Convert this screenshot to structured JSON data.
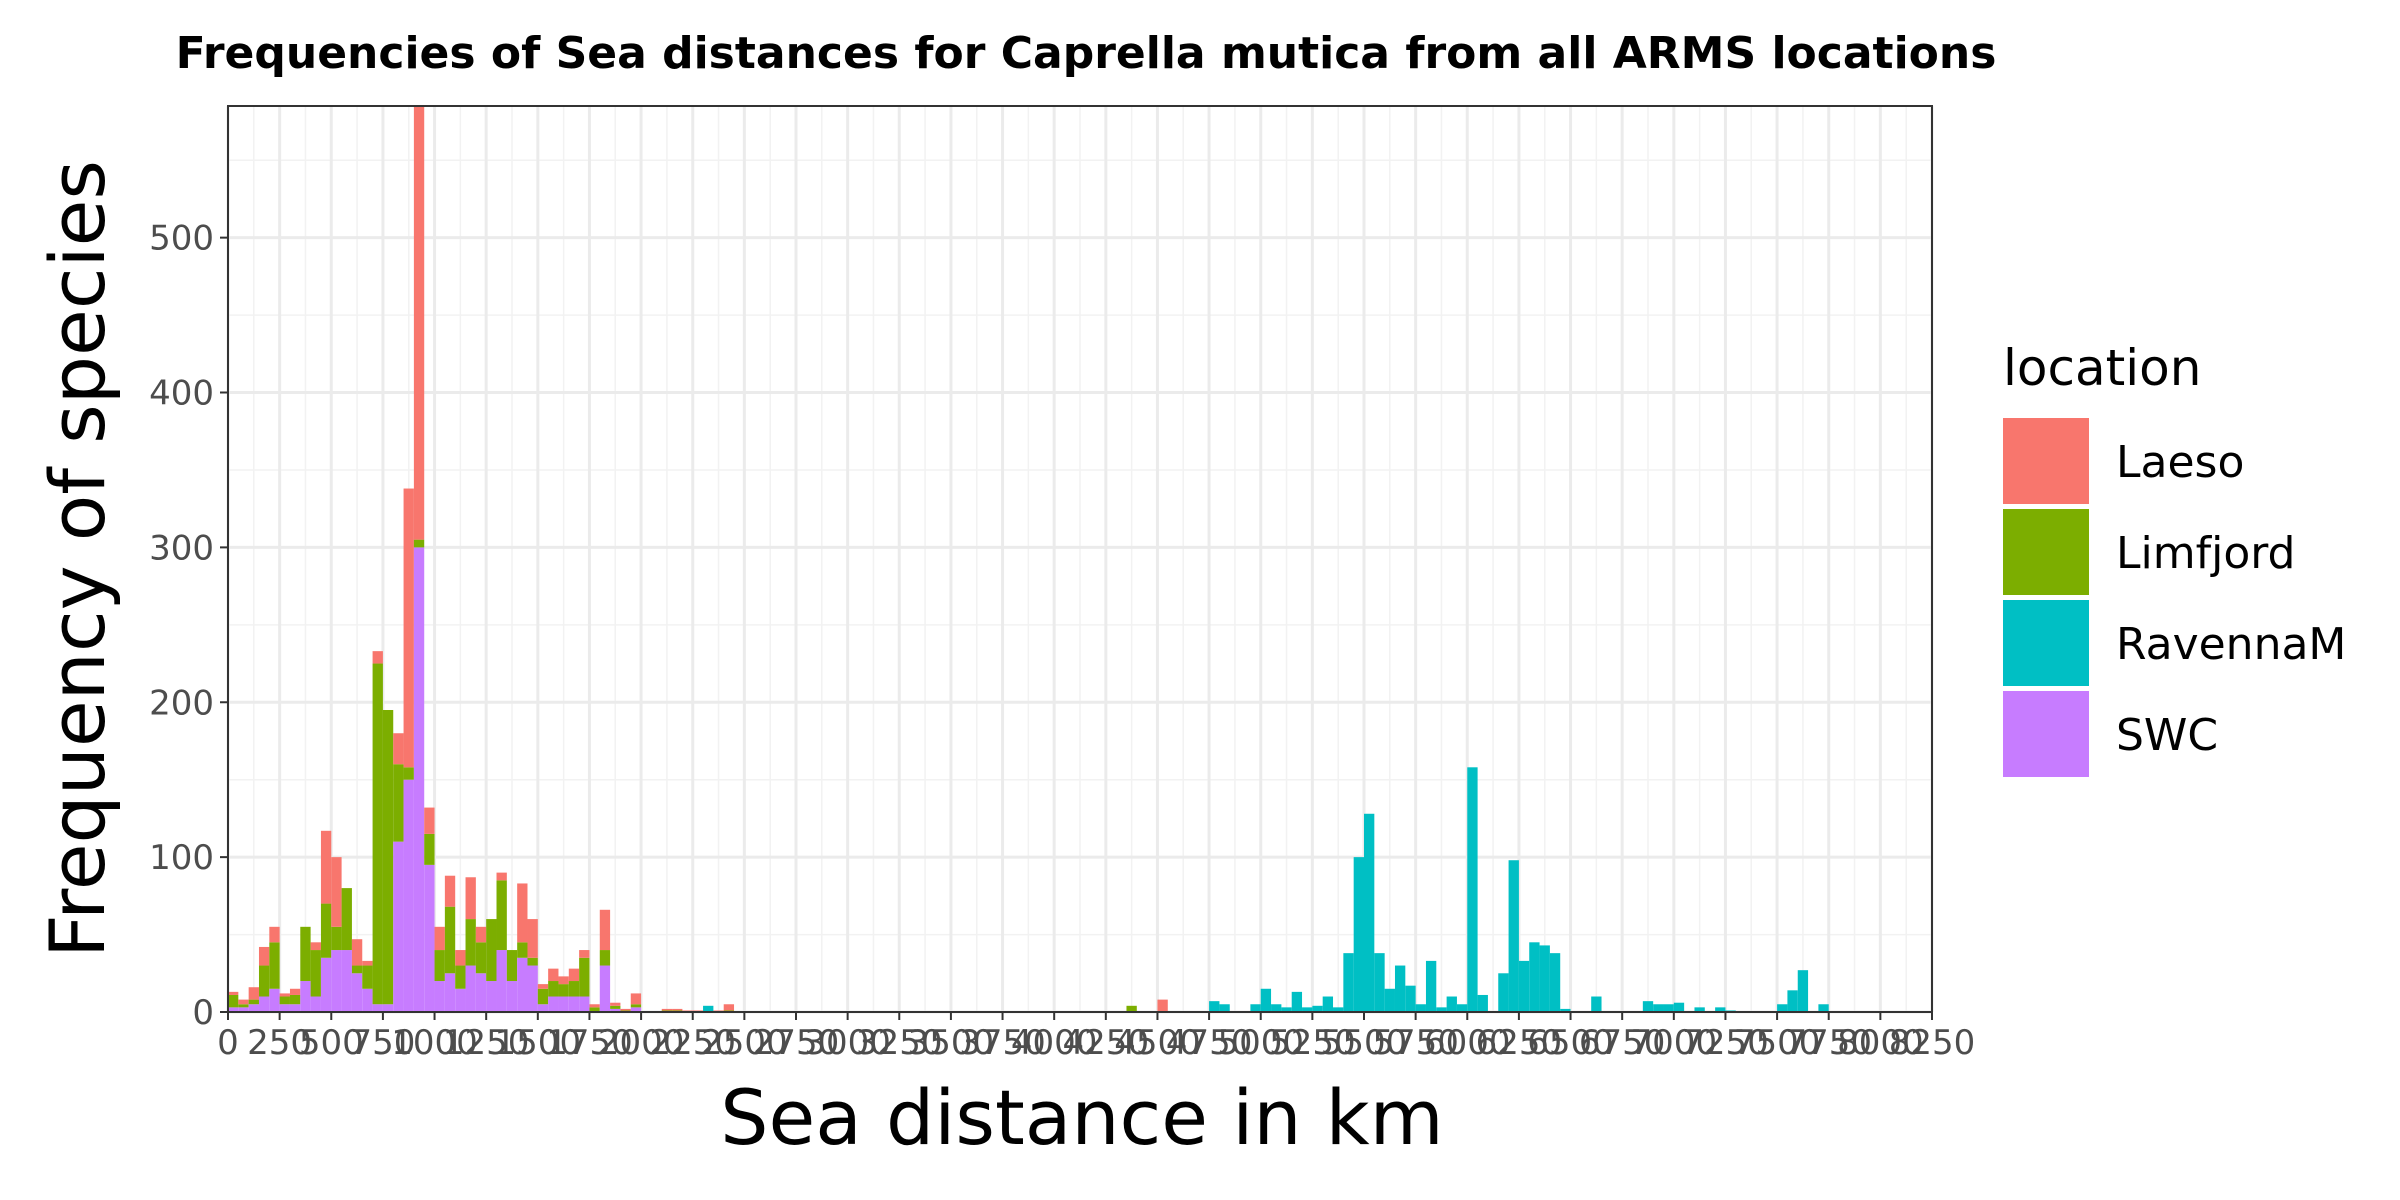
{
  "chart_data": {
    "type": "bar",
    "stacked": true,
    "title": "Frequencies of Sea distances for Caprella mutica from all ARMS locations",
    "xlabel": "Sea distance in km",
    "ylabel": "Frequency of species",
    "xlim": [
      0,
      8250
    ],
    "ylim": [
      0,
      585
    ],
    "bin_width": 50,
    "x_ticks": [
      0,
      250,
      500,
      750,
      1000,
      1250,
      1500,
      1750,
      2000,
      2250,
      2500,
      2750,
      3000,
      3250,
      3500,
      3750,
      4000,
      4250,
      4500,
      4750,
      5000,
      5250,
      5500,
      5750,
      6000,
      6250,
      6500,
      6750,
      7000,
      7250,
      7500,
      7750,
      8000,
      8250
    ],
    "y_ticks": [
      0,
      100,
      200,
      300,
      400,
      500
    ],
    "grid": true,
    "legend": {
      "title": "location",
      "position": "right",
      "entries": [
        {
          "name": "Laeso",
          "color": "#F8766D"
        },
        {
          "name": "Limfjord",
          "color": "#7CAE00"
        },
        {
          "name": "RavennaM",
          "color": "#00BFC4"
        },
        {
          "name": "SWC",
          "color": "#C77CFF"
        }
      ]
    },
    "bins": [
      {
        "x": 0,
        "SWC": 3,
        "Limfjord": 8,
        "Laeso": 2
      },
      {
        "x": 50,
        "SWC": 3,
        "Limfjord": 2,
        "Laeso": 3
      },
      {
        "x": 100,
        "SWC": 5,
        "Limfjord": 3,
        "Laeso": 8
      },
      {
        "x": 150,
        "SWC": 10,
        "Limfjord": 20,
        "Laeso": 12
      },
      {
        "x": 200,
        "SWC": 15,
        "Limfjord": 30,
        "Laeso": 10
      },
      {
        "x": 250,
        "SWC": 5,
        "Limfjord": 5,
        "Laeso": 2
      },
      {
        "x": 300,
        "SWC": 5,
        "Limfjord": 6,
        "Laeso": 4
      },
      {
        "x": 350,
        "SWC": 20,
        "Limfjord": 35,
        "Laeso": 0
      },
      {
        "x": 400,
        "SWC": 10,
        "Limfjord": 30,
        "Laeso": 5
      },
      {
        "x": 450,
        "SWC": 35,
        "Limfjord": 35,
        "Laeso": 47
      },
      {
        "x": 500,
        "SWC": 40,
        "Limfjord": 15,
        "Laeso": 45
      },
      {
        "x": 550,
        "SWC": 40,
        "Limfjord": 40,
        "Laeso": 0
      },
      {
        "x": 600,
        "SWC": 25,
        "Limfjord": 5,
        "Laeso": 17
      },
      {
        "x": 650,
        "SWC": 15,
        "Limfjord": 15,
        "Laeso": 3
      },
      {
        "x": 700,
        "SWC": 5,
        "Limfjord": 220,
        "Laeso": 8
      },
      {
        "x": 750,
        "SWC": 5,
        "Limfjord": 190,
        "Laeso": 0
      },
      {
        "x": 800,
        "SWC": 110,
        "Limfjord": 50,
        "Laeso": 20
      },
      {
        "x": 850,
        "SWC": 150,
        "Limfjord": 8,
        "Laeso": 180
      },
      {
        "x": 900,
        "SWC": 300,
        "Limfjord": 5,
        "Laeso": 280
      },
      {
        "x": 950,
        "SWC": 95,
        "Limfjord": 20,
        "Laeso": 17
      },
      {
        "x": 1000,
        "SWC": 20,
        "Limfjord": 20,
        "Laeso": 15
      },
      {
        "x": 1050,
        "SWC": 25,
        "Limfjord": 43,
        "Laeso": 20
      },
      {
        "x": 1100,
        "SWC": 15,
        "Limfjord": 15,
        "Laeso": 10
      },
      {
        "x": 1150,
        "SWC": 30,
        "Limfjord": 30,
        "Laeso": 27
      },
      {
        "x": 1200,
        "SWC": 25,
        "Limfjord": 20,
        "Laeso": 10
      },
      {
        "x": 1250,
        "SWC": 20,
        "Limfjord": 40,
        "Laeso": 0
      },
      {
        "x": 1300,
        "SWC": 40,
        "Limfjord": 45,
        "Laeso": 5
      },
      {
        "x": 1350,
        "SWC": 20,
        "Limfjord": 20,
        "Laeso": 0
      },
      {
        "x": 1400,
        "SWC": 35,
        "Limfjord": 10,
        "Laeso": 38
      },
      {
        "x": 1450,
        "SWC": 30,
        "Limfjord": 5,
        "Laeso": 25
      },
      {
        "x": 1500,
        "SWC": 5,
        "Limfjord": 10,
        "Laeso": 3
      },
      {
        "x": 1550,
        "SWC": 10,
        "Limfjord": 10,
        "Laeso": 8
      },
      {
        "x": 1600,
        "SWC": 10,
        "Limfjord": 8,
        "Laeso": 5
      },
      {
        "x": 1650,
        "SWC": 10,
        "Limfjord": 10,
        "Laeso": 8
      },
      {
        "x": 1700,
        "SWC": 10,
        "Limfjord": 25,
        "Laeso": 5
      },
      {
        "x": 1750,
        "SWC": 0,
        "Limfjord": 3,
        "Laeso": 2
      },
      {
        "x": 1800,
        "SWC": 30,
        "Limfjord": 10,
        "Laeso": 26
      },
      {
        "x": 1850,
        "SWC": 2,
        "Limfjord": 2,
        "Laeso": 2
      },
      {
        "x": 1900,
        "SWC": 0,
        "Limfjord": 1,
        "Laeso": 1
      },
      {
        "x": 1950,
        "SWC": 3,
        "Limfjord": 2,
        "Laeso": 7
      },
      {
        "x": 2100,
        "SWC": 0,
        "Limfjord": 1,
        "Laeso": 1
      },
      {
        "x": 2150,
        "SWC": 0,
        "Limfjord": 1,
        "Laeso": 1
      },
      {
        "x": 2200,
        "SWC": 0,
        "Limfjord": 0,
        "Laeso": 1
      },
      {
        "x": 2250,
        "SWC": 0,
        "Limfjord": 0,
        "Laeso": 1
      },
      {
        "x": 2350,
        "SWC": 0,
        "Limfjord": 0,
        "Laeso": 1
      },
      {
        "x": 2400,
        "SWC": 0,
        "Limfjord": 1,
        "Laeso": 4
      },
      {
        "x": 2300,
        "RavennaM": 4
      },
      {
        "x": 4350,
        "Limfjord": 4
      },
      {
        "x": 4500,
        "Laeso": 8
      },
      {
        "x": 4750,
        "RavennaM": 7
      },
      {
        "x": 4800,
        "RavennaM": 5
      },
      {
        "x": 4950,
        "RavennaM": 5
      },
      {
        "x": 5000,
        "RavennaM": 15
      },
      {
        "x": 5050,
        "RavennaM": 5
      },
      {
        "x": 5100,
        "RavennaM": 3
      },
      {
        "x": 5150,
        "RavennaM": 13
      },
      {
        "x": 5200,
        "RavennaM": 3
      },
      {
        "x": 5250,
        "RavennaM": 4
      },
      {
        "x": 5300,
        "RavennaM": 10
      },
      {
        "x": 5350,
        "RavennaM": 3
      },
      {
        "x": 5400,
        "RavennaM": 38
      },
      {
        "x": 5450,
        "RavennaM": 100
      },
      {
        "x": 5500,
        "RavennaM": 128
      },
      {
        "x": 5550,
        "RavennaM": 38
      },
      {
        "x": 5600,
        "RavennaM": 15
      },
      {
        "x": 5650,
        "RavennaM": 30
      },
      {
        "x": 5700,
        "RavennaM": 17
      },
      {
        "x": 5750,
        "RavennaM": 5
      },
      {
        "x": 5800,
        "RavennaM": 33
      },
      {
        "x": 5850,
        "RavennaM": 3
      },
      {
        "x": 5900,
        "RavennaM": 10
      },
      {
        "x": 5950,
        "RavennaM": 5
      },
      {
        "x": 6000,
        "RavennaM": 158
      },
      {
        "x": 6050,
        "RavennaM": 11
      },
      {
        "x": 6150,
        "RavennaM": 25
      },
      {
        "x": 6200,
        "RavennaM": 98
      },
      {
        "x": 6250,
        "RavennaM": 33
      },
      {
        "x": 6300,
        "RavennaM": 45
      },
      {
        "x": 6350,
        "RavennaM": 43
      },
      {
        "x": 6400,
        "RavennaM": 38
      },
      {
        "x": 6450,
        "RavennaM": 2
      },
      {
        "x": 6600,
        "RavennaM": 10
      },
      {
        "x": 6850,
        "RavennaM": 7
      },
      {
        "x": 6900,
        "RavennaM": 5
      },
      {
        "x": 6950,
        "RavennaM": 5
      },
      {
        "x": 7000,
        "RavennaM": 6
      },
      {
        "x": 7100,
        "RavennaM": 3
      },
      {
        "x": 7200,
        "RavennaM": 3
      },
      {
        "x": 7250,
        "RavennaM": 1
      },
      {
        "x": 7500,
        "RavennaM": 5
      },
      {
        "x": 7550,
        "RavennaM": 14
      },
      {
        "x": 7600,
        "RavennaM": 27
      },
      {
        "x": 7700,
        "RavennaM": 5
      }
    ]
  }
}
